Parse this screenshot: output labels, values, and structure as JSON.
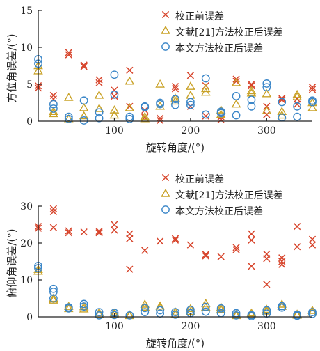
{
  "colors": {
    "before": "#d7442b",
    "literature": "#c9a227",
    "proposed": "#3a86c8",
    "axis": "#222222"
  },
  "chart_data": [
    {
      "type": "scatter",
      "xlabel": "旋转角度/(°)",
      "ylabel": "方位角误差/(°)",
      "xlim": [
        0,
        360
      ],
      "ylim": [
        0,
        15
      ],
      "xticks": [
        100,
        200,
        300
      ],
      "yticks": [
        0,
        5,
        10,
        15
      ],
      "legend_placement": "top-right",
      "series": [
        {
          "name": "校正前误差",
          "marker": "x",
          "x": [
            0,
            0,
            20,
            20,
            40,
            40,
            60,
            60,
            80,
            80,
            100,
            100,
            120,
            120,
            140,
            140,
            160,
            160,
            180,
            180,
            200,
            200,
            220,
            220,
            240,
            240,
            260,
            260,
            280,
            280,
            300,
            300,
            320,
            320,
            340,
            340,
            360,
            360
          ],
          "y": [
            4.8,
            4.5,
            3.0,
            3.5,
            9.3,
            9.0,
            7.6,
            7.4,
            5.6,
            5.2,
            4.2,
            3.4,
            6.9,
            2.0,
            1.5,
            0.5,
            0.4,
            0.1,
            4.7,
            4.4,
            6.2,
            2.0,
            4.8,
            0.7,
            0.6,
            0.2,
            5.7,
            5.4,
            5.0,
            4.8,
            2.0,
            0.9,
            3.1,
            2.9,
            3.0,
            2.3,
            4.6,
            4.3
          ]
        },
        {
          "name": "文献[21]方法校正后误差",
          "marker": "triangle",
          "x": [
            0,
            0,
            20,
            20,
            40,
            40,
            60,
            60,
            80,
            80,
            100,
            100,
            120,
            120,
            140,
            140,
            160,
            160,
            180,
            180,
            200,
            200,
            220,
            220,
            240,
            240,
            260,
            260,
            280,
            280,
            300,
            300,
            320,
            320,
            340,
            340,
            360,
            360
          ],
          "y": [
            7.5,
            6.8,
            1.3,
            1.0,
            3.2,
            0.3,
            1.8,
            0.7,
            3.5,
            1.7,
            1.5,
            0.8,
            5.4,
            1.8,
            0.6,
            0.3,
            5.0,
            2.0,
            3.1,
            2.7,
            4.7,
            3.5,
            4.4,
            3.9,
            1.5,
            0.9,
            5.2,
            2.3,
            4.1,
            3.8,
            3.7,
            1.4,
            1.3,
            0.8,
            3.6,
            3.3,
            2.5,
            1.8
          ]
        },
        {
          "name": "本文方法校正后误差",
          "marker": "circle",
          "x": [
            0,
            0,
            20,
            20,
            40,
            40,
            60,
            60,
            80,
            80,
            100,
            100,
            120,
            120,
            140,
            140,
            160,
            160,
            180,
            180,
            200,
            200,
            220,
            220,
            240,
            240,
            260,
            260,
            280,
            280,
            300,
            300,
            320,
            320,
            340,
            340,
            360,
            360
          ],
          "y": [
            8.4,
            7.8,
            2.3,
            1.7,
            0.6,
            0.3,
            2.8,
            0.1,
            1.2,
            0.4,
            6.3,
            3.6,
            0.6,
            0.3,
            2.0,
            1.9,
            2.5,
            2.3,
            3.0,
            2.2,
            2.6,
            2.2,
            5.8,
            0.9,
            1.3,
            1.1,
            3.4,
            0.8,
            2.9,
            2.0,
            5.1,
            4.6,
            0.5,
            2.6,
            2.0,
            0.6,
            2.8,
            2.6
          ]
        }
      ]
    },
    {
      "type": "scatter",
      "xlabel": "旋转角度/(°)",
      "ylabel": "俯仰角误差/(°)",
      "xlim": [
        0,
        360
      ],
      "ylim": [
        0,
        30
      ],
      "xticks": [
        100,
        200,
        300
      ],
      "yticks": [
        0,
        10,
        20,
        30
      ],
      "legend_placement": "top-right",
      "series": [
        {
          "name": "校正前误差",
          "marker": "x",
          "x": [
            0,
            0,
            20,
            20,
            20,
            40,
            40,
            60,
            80,
            80,
            100,
            100,
            120,
            120,
            120,
            140,
            160,
            180,
            180,
            200,
            220,
            220,
            240,
            260,
            260,
            280,
            280,
            280,
            300,
            300,
            300,
            320,
            320,
            320,
            340,
            340,
            360,
            360
          ],
          "y": [
            24.5,
            24.0,
            29.3,
            28.5,
            24.2,
            23.3,
            22.8,
            23.0,
            23.2,
            22.8,
            25.0,
            23.5,
            22.5,
            21.2,
            12.9,
            18.0,
            20.5,
            21.2,
            20.8,
            19.5,
            16.9,
            16.5,
            16.3,
            18.8,
            18.2,
            22.5,
            20.8,
            13.7,
            17.0,
            15.8,
            8.8,
            16.0,
            15.0,
            14.2,
            24.5,
            19.0,
            21.0,
            19.5
          ]
        },
        {
          "name": "文献[21]方法校正后误差",
          "marker": "triangle",
          "x": [
            0,
            0,
            20,
            20,
            40,
            40,
            60,
            60,
            80,
            80,
            100,
            100,
            120,
            120,
            140,
            140,
            160,
            160,
            180,
            180,
            200,
            200,
            220,
            220,
            240,
            240,
            260,
            260,
            280,
            280,
            300,
            300,
            320,
            320,
            340,
            340,
            360,
            360
          ],
          "y": [
            12.8,
            12.3,
            5.0,
            4.5,
            2.8,
            2.2,
            2.7,
            2.1,
            1.1,
            0.7,
            1.0,
            0.6,
            0.5,
            0.3,
            3.4,
            2.6,
            2.9,
            2.4,
            1.3,
            0.6,
            2.2,
            1.4,
            3.6,
            2.6,
            2.6,
            2.0,
            0.6,
            0.3,
            1.0,
            0.5,
            2.0,
            1.5,
            3.4,
            2.8,
            0.7,
            0.4,
            1.7,
            1.2
          ]
        },
        {
          "name": "本文方法校正后误差",
          "marker": "circle",
          "x": [
            0,
            0,
            20,
            20,
            20,
            40,
            40,
            60,
            60,
            80,
            80,
            100,
            100,
            120,
            140,
            140,
            160,
            160,
            180,
            180,
            200,
            200,
            220,
            220,
            240,
            240,
            260,
            260,
            280,
            280,
            300,
            300,
            320,
            320,
            340,
            340,
            360,
            360
          ],
          "y": [
            13.8,
            13.2,
            7.6,
            6.8,
            5.0,
            2.6,
            2.3,
            3.5,
            2.8,
            1.3,
            0.4,
            1.1,
            0.5,
            0.4,
            2.4,
            1.3,
            1.8,
            0.9,
            1.3,
            0.6,
            1.9,
            1.0,
            2.7,
            1.4,
            2.3,
            1.0,
            1.0,
            0.4,
            0.5,
            0.2,
            1.8,
            0.9,
            2.9,
            2.5,
            0.6,
            0.3,
            1.3,
            0.8
          ]
        }
      ]
    }
  ]
}
